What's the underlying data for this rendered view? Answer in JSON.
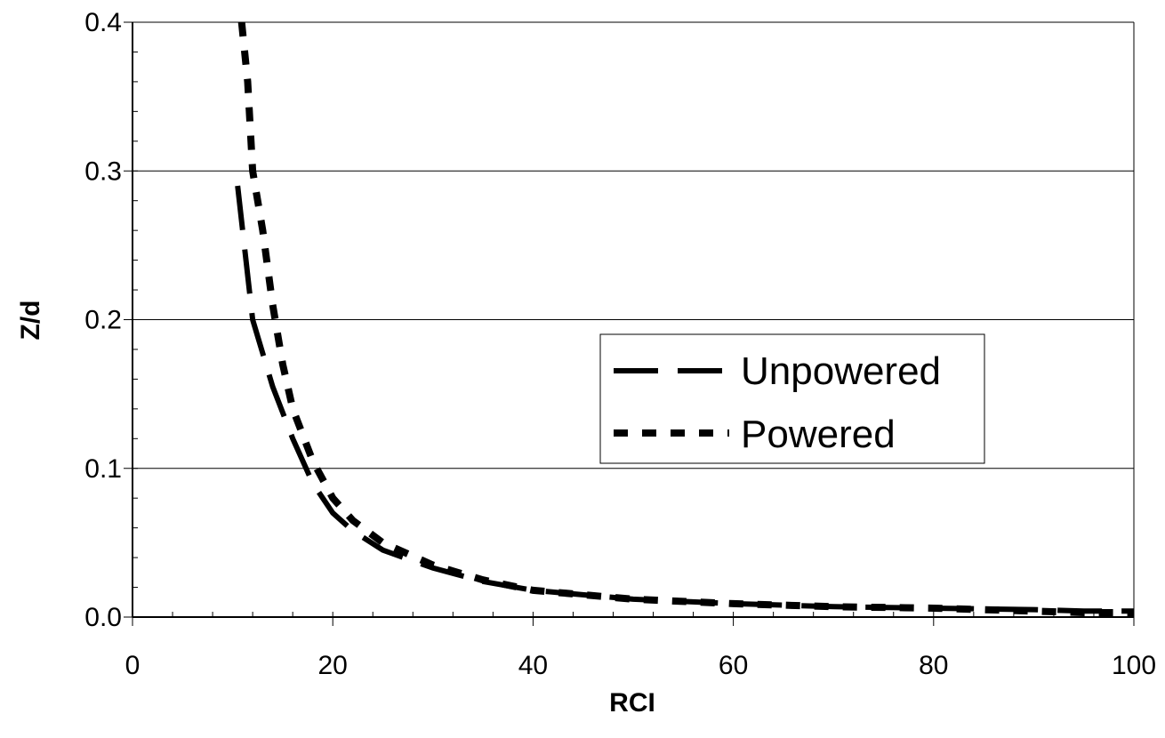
{
  "chart_data": {
    "type": "line",
    "title": "",
    "xlabel": "RCI",
    "ylabel": "Z/d",
    "xlim": [
      0,
      100
    ],
    "ylim": [
      0,
      0.4
    ],
    "x_ticks": [
      "0",
      "20",
      "40",
      "60",
      "80",
      "100"
    ],
    "y_ticks": [
      "0.0",
      "0.1",
      "0.2",
      "0.3",
      "0.4"
    ],
    "grid": "horizontal",
    "legend_position": "center-right",
    "series": [
      {
        "name": "Unpowered",
        "style": "long-dash",
        "color": "#000000",
        "x": [
          10.5,
          12,
          14,
          16,
          18,
          20,
          22,
          25,
          30,
          35,
          40,
          50,
          60,
          70,
          80,
          90,
          95,
          100
        ],
        "y": [
          0.29,
          0.2,
          0.155,
          0.12,
          0.09,
          0.07,
          0.058,
          0.045,
          0.033,
          0.024,
          0.018,
          0.012,
          0.009,
          0.007,
          0.006,
          0.005,
          0.004,
          0.004
        ]
      },
      {
        "name": "Powered",
        "style": "short-dash",
        "color": "#000000",
        "x": [
          10.9,
          11.5,
          12,
          13,
          14,
          15,
          16,
          18,
          20,
          22,
          25,
          30,
          35,
          40,
          50,
          60,
          70,
          80,
          90,
          95,
          100
        ],
        "y": [
          0.4,
          0.36,
          0.3,
          0.26,
          0.21,
          0.17,
          0.14,
          0.105,
          0.08,
          0.065,
          0.05,
          0.035,
          0.025,
          0.018,
          0.012,
          0.009,
          0.007,
          0.006,
          0.004,
          0.003,
          0.003
        ]
      }
    ]
  }
}
